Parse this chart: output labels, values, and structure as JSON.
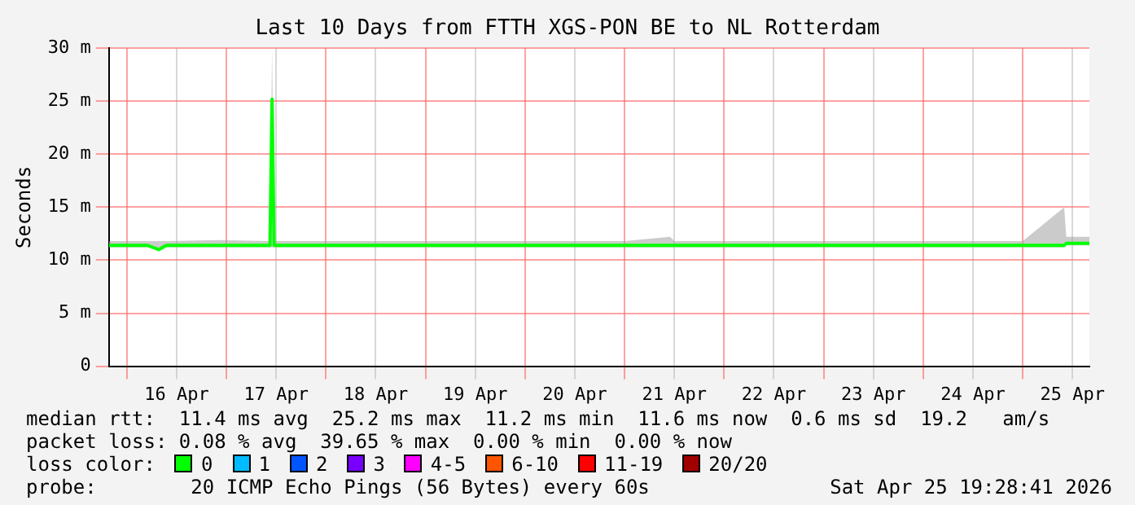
{
  "chart_data": {
    "type": "line",
    "title": "Last 10 Days from FTTH XGS-PON BE to NL Rotterdam",
    "ylabel": "Seconds",
    "xlim": [
      "2026-04-15T19:40",
      "2026-04-25T16:05"
    ],
    "xticks": [
      {
        "value": "2026-04-16T00:00",
        "label": null
      },
      {
        "value": "2026-04-16T12:00",
        "label": "16 Apr"
      },
      {
        "value": "2026-04-17T00:00",
        "label": null
      },
      {
        "value": "2026-04-17T12:00",
        "label": "17 Apr"
      },
      {
        "value": "2026-04-18T00:00",
        "label": null
      },
      {
        "value": "2026-04-18T12:00",
        "label": "18 Apr"
      },
      {
        "value": "2026-04-19T00:00",
        "label": null
      },
      {
        "value": "2026-04-19T12:00",
        "label": "19 Apr"
      },
      {
        "value": "2026-04-20T00:00",
        "label": null
      },
      {
        "value": "2026-04-20T12:00",
        "label": "20 Apr"
      },
      {
        "value": "2026-04-21T00:00",
        "label": null
      },
      {
        "value": "2026-04-21T12:00",
        "label": "21 Apr"
      },
      {
        "value": "2026-04-22T00:00",
        "label": null
      },
      {
        "value": "2026-04-22T12:00",
        "label": "22 Apr"
      },
      {
        "value": "2026-04-23T00:00",
        "label": null
      },
      {
        "value": "2026-04-23T12:00",
        "label": "23 Apr"
      },
      {
        "value": "2026-04-24T00:00",
        "label": null
      },
      {
        "value": "2026-04-24T12:00",
        "label": "24 Apr"
      },
      {
        "value": "2026-04-25T00:00",
        "label": null
      },
      {
        "value": "2026-04-25T12:00",
        "label": "25 Apr"
      }
    ],
    "ylim": [
      0,
      30
    ],
    "yticks": [
      0,
      {
        "value": 5,
        "label": "5 m"
      },
      {
        "value": 10,
        "label": "10 m"
      },
      {
        "value": 15,
        "label": "15 m"
      },
      {
        "value": 20,
        "label": "20 m"
      },
      {
        "value": 25,
        "label": "25 m"
      },
      {
        "value": 30,
        "label": "30 m"
      }
    ],
    "grid": true,
    "legend": "bottom",
    "legend_title": "loss color:",
    "marker": "none",
    "line_style": "solid",
    "x": [
      "2026-04-15T19:40",
      "2026-04-16T05:00",
      "2026-04-16T07:40",
      "2026-04-16T09:30",
      "2026-04-16T22:00",
      "2026-04-17T10:30",
      "2026-04-17T11:00",
      "2026-04-17T11:30",
      "2026-04-18T00:00",
      "2026-04-19T00:00",
      "2026-04-20T00:00",
      "2026-04-21T00:00",
      "2026-04-21T11:00",
      "2026-04-21T12:00",
      "2026-04-22T00:00",
      "2026-04-23T00:00",
      "2026-04-24T00:00",
      "2026-04-25T00:00",
      "2026-04-25T10:00",
      "2026-04-25T10:30",
      "2026-04-25T16:05"
    ],
    "series": [
      {
        "name": "0",
        "color": "#00ff00",
        "values": [
          11.4,
          11.4,
          11.0,
          11.4,
          11.4,
          11.4,
          25.2,
          11.4,
          11.4,
          11.4,
          11.4,
          11.4,
          11.4,
          11.4,
          11.4,
          11.4,
          11.4,
          11.4,
          11.4,
          11.6,
          11.6
        ],
        "lower": [
          11.2,
          11.2,
          10.9,
          11.2,
          11.2,
          11.2,
          11.2,
          11.2,
          11.2,
          11.2,
          11.2,
          11.2,
          11.2,
          11.2,
          11.2,
          11.2,
          11.2,
          11.2,
          11.2,
          11.4,
          11.4
        ],
        "upper": [
          11.8,
          11.8,
          11.8,
          11.8,
          11.9,
          11.8,
          30,
          11.8,
          11.8,
          11.8,
          11.8,
          11.8,
          12.2,
          11.8,
          11.8,
          11.8,
          11.8,
          11.8,
          15,
          12.2,
          12.2
        ]
      },
      {
        "name": "1",
        "color": "#00bbff",
        "values": [
          null,
          null,
          null,
          null,
          null,
          null,
          null,
          null,
          null,
          null,
          null,
          null,
          null,
          null,
          null,
          null,
          null,
          null,
          null,
          null,
          null
        ]
      },
      {
        "name": "2",
        "color": "#0055ff",
        "values": [
          null,
          null,
          null,
          null,
          null,
          null,
          null,
          null,
          null,
          null,
          null,
          null,
          null,
          null,
          null,
          null,
          null,
          null,
          null,
          null,
          null
        ]
      },
      {
        "name": "3",
        "color": "#7700ff",
        "values": [
          null,
          null,
          null,
          null,
          null,
          null,
          null,
          null,
          null,
          null,
          null,
          null,
          null,
          null,
          null,
          null,
          null,
          null,
          null,
          null,
          null
        ]
      },
      {
        "name": "4-5",
        "color": "#ff00ff",
        "values": [
          null,
          null,
          null,
          null,
          null,
          null,
          null,
          null,
          null,
          null,
          null,
          null,
          null,
          null,
          null,
          null,
          null,
          null,
          null,
          null,
          null
        ]
      },
      {
        "name": "6-10",
        "color": "#ff5500",
        "values": [
          null,
          null,
          null,
          null,
          null,
          null,
          null,
          null,
          null,
          null,
          null,
          null,
          null,
          null,
          null,
          null,
          null,
          null,
          null,
          null,
          null
        ]
      },
      {
        "name": "11-19",
        "color": "#ff0000",
        "values": [
          null,
          null,
          null,
          null,
          null,
          null,
          null,
          null,
          null,
          null,
          null,
          null,
          null,
          null,
          null,
          null,
          null,
          null,
          null,
          null,
          null
        ]
      },
      {
        "name": "20/20",
        "color": "#a10000",
        "values": [
          null,
          null,
          null,
          null,
          null,
          null,
          null,
          null,
          null,
          null,
          null,
          null,
          null,
          null,
          null,
          null,
          null,
          null,
          null,
          null,
          null
        ]
      }
    ],
    "annotations": [
      "median rtt:  11.4 ms avg  25.2 ms max  11.2 ms min  11.6 ms now  0.6 ms sd  19.2   am/s",
      "packet loss: 0.08 % avg  39.65 % max  0.00 % min  0.00 % now",
      "probe:        20 ICMP Echo Pings (56 Bytes) every 60s",
      "Sat Apr 25 19:28:41 2026"
    ]
  }
}
